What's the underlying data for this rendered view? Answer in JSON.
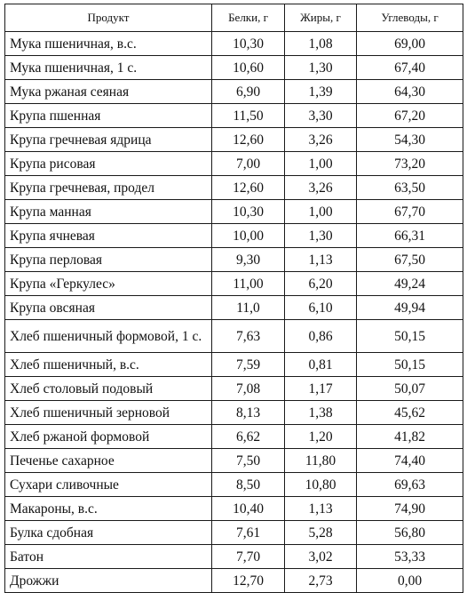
{
  "table": {
    "headers": [
      "Продукт",
      "Белки, г",
      "Жиры, г",
      "Углеводы, г"
    ],
    "rows": [
      [
        "Мука пшеничная, в.с.",
        "10,30",
        "1,08",
        "69,00"
      ],
      [
        "Мука пшеничная, 1 с.",
        "10,60",
        "1,30",
        "67,40"
      ],
      [
        "Мука ржаная сеяная",
        "6,90",
        "1,39",
        "64,30"
      ],
      [
        "Крупа пшенная",
        "11,50",
        "3,30",
        "67,20"
      ],
      [
        "Крупа гречневая ядрица",
        "12,60",
        "3,26",
        "54,30"
      ],
      [
        "Крупа рисовая",
        "7,00",
        "1,00",
        "73,20"
      ],
      [
        "Крупа гречневая, продел",
        "12,60",
        "3,26",
        "63,50"
      ],
      [
        "Крупа манная",
        "10,30",
        "1,00",
        "67,70"
      ],
      [
        "Крупа ячневая",
        "10,00",
        "1,30",
        "66,31"
      ],
      [
        "Крупа перловая",
        "9,30",
        "1,13",
        "67,50"
      ],
      [
        "Крупа «Геркулес»",
        "11,00",
        "6,20",
        "49,24"
      ],
      [
        "Крупа овсяная",
        "11,0",
        "6,10",
        "49,94"
      ],
      [
        "Хлеб пшеничный формовой, 1 с.",
        "7,63",
        "0,86",
        "50,15"
      ],
      [
        "Хлеб пшеничный, в.с.",
        "7,59",
        "0,81",
        "50,15"
      ],
      [
        "Хлеб столовый подовый",
        "7,08",
        "1,17",
        "50,07"
      ],
      [
        "Хлеб пшеничный зерновой",
        "8,13",
        "1,38",
        "45,62"
      ],
      [
        "Хлеб ржаной формовой",
        "6,62",
        "1,20",
        "41,82"
      ],
      [
        "Печенье сахарное",
        "7,50",
        "11,80",
        "74,40"
      ],
      [
        "Сухари сливочные",
        "8,50",
        "10,80",
        "69,63"
      ],
      [
        "Макароны, в.с.",
        "10,40",
        "1,13",
        "74,90"
      ],
      [
        "Булка сдобная",
        "7,61",
        "5,28",
        "56,80"
      ],
      [
        "Батон",
        "7,70",
        "3,02",
        "53,33"
      ],
      [
        "Дрожжи",
        "12,70",
        "2,73",
        "0,00"
      ]
    ]
  }
}
